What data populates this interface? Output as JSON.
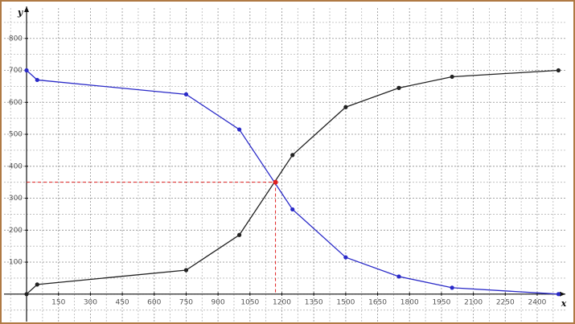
{
  "chart_data": {
    "type": "line",
    "x_label": "x",
    "y_label": "y",
    "x": [
      0,
      50,
      750,
      1000,
      1250,
      1500,
      1750,
      2000,
      2500
    ],
    "series": [
      {
        "color": "#222222",
        "values": [
          0,
          30,
          75,
          185,
          435,
          585,
          645,
          680,
          700
        ]
      },
      {
        "color": "#2a2ac8",
        "values": [
          700,
          670,
          625,
          515,
          265,
          115,
          55,
          20,
          0
        ]
      }
    ],
    "highlight": {
      "x": 1170,
      "y": 350,
      "color": "#e02020"
    },
    "xlim": [
      -106,
      2540
    ],
    "ylim": [
      -86,
      895
    ],
    "xticks": [
      150,
      300,
      450,
      600,
      750,
      900,
      1050,
      1200,
      1350,
      1500,
      1650,
      1800,
      1950,
      2100,
      2250,
      2400
    ],
    "yticks": [
      100,
      200,
      300,
      400,
      500,
      600,
      700,
      800
    ],
    "grid": true
  }
}
